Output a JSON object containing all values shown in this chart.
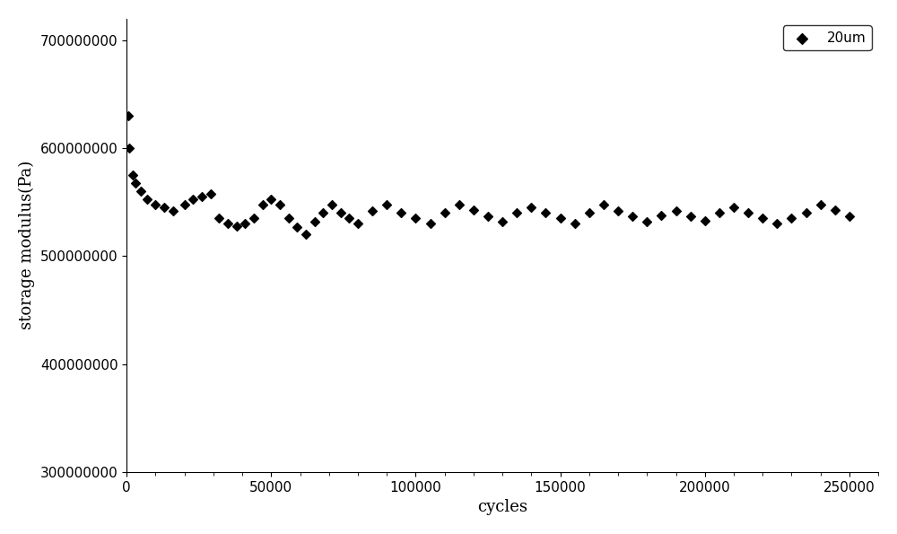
{
  "title": "",
  "xlabel": "cycles",
  "ylabel": "storage modulus(Pa)",
  "xlim": [
    0,
    260000
  ],
  "ylim": [
    300000000,
    720000000
  ],
  "xticks": [
    0,
    50000,
    100000,
    150000,
    200000,
    250000
  ],
  "yticks": [
    300000000,
    400000000,
    500000000,
    600000000,
    700000000
  ],
  "legend_label": "20um",
  "marker_color": "black",
  "marker": "D",
  "marker_size": 5,
  "data_points": [
    [
      500,
      630000000
    ],
    [
      1000,
      600000000
    ],
    [
      2000,
      575000000
    ],
    [
      3000,
      568000000
    ],
    [
      5000,
      560000000
    ],
    [
      7000,
      553000000
    ],
    [
      10000,
      548000000
    ],
    [
      13000,
      545000000
    ],
    [
      16000,
      542000000
    ],
    [
      20000,
      548000000
    ],
    [
      23000,
      553000000
    ],
    [
      26000,
      555000000
    ],
    [
      29000,
      558000000
    ],
    [
      32000,
      535000000
    ],
    [
      35000,
      530000000
    ],
    [
      38000,
      528000000
    ],
    [
      41000,
      530000000
    ],
    [
      44000,
      535000000
    ],
    [
      47000,
      548000000
    ],
    [
      50000,
      553000000
    ],
    [
      53000,
      548000000
    ],
    [
      56000,
      535000000
    ],
    [
      59000,
      527000000
    ],
    [
      62000,
      520000000
    ],
    [
      65000,
      532000000
    ],
    [
      68000,
      540000000
    ],
    [
      71000,
      548000000
    ],
    [
      74000,
      540000000
    ],
    [
      77000,
      535000000
    ],
    [
      80000,
      530000000
    ],
    [
      85000,
      542000000
    ],
    [
      90000,
      548000000
    ],
    [
      95000,
      540000000
    ],
    [
      100000,
      535000000
    ],
    [
      105000,
      530000000
    ],
    [
      110000,
      540000000
    ],
    [
      115000,
      548000000
    ],
    [
      120000,
      543000000
    ],
    [
      125000,
      537000000
    ],
    [
      130000,
      532000000
    ],
    [
      135000,
      540000000
    ],
    [
      140000,
      545000000
    ],
    [
      145000,
      540000000
    ],
    [
      150000,
      535000000
    ],
    [
      155000,
      530000000
    ],
    [
      160000,
      540000000
    ],
    [
      165000,
      548000000
    ],
    [
      170000,
      542000000
    ],
    [
      175000,
      537000000
    ],
    [
      180000,
      532000000
    ],
    [
      185000,
      538000000
    ],
    [
      190000,
      542000000
    ],
    [
      195000,
      537000000
    ],
    [
      200000,
      533000000
    ],
    [
      205000,
      540000000
    ],
    [
      210000,
      545000000
    ],
    [
      215000,
      540000000
    ],
    [
      220000,
      535000000
    ],
    [
      225000,
      530000000
    ],
    [
      230000,
      535000000
    ],
    [
      235000,
      540000000
    ],
    [
      240000,
      548000000
    ],
    [
      245000,
      543000000
    ],
    [
      250000,
      537000000
    ]
  ],
  "background_color": "#ffffff",
  "legend_fontsize": 11,
  "axis_fontsize": 13,
  "tick_fontsize": 11
}
